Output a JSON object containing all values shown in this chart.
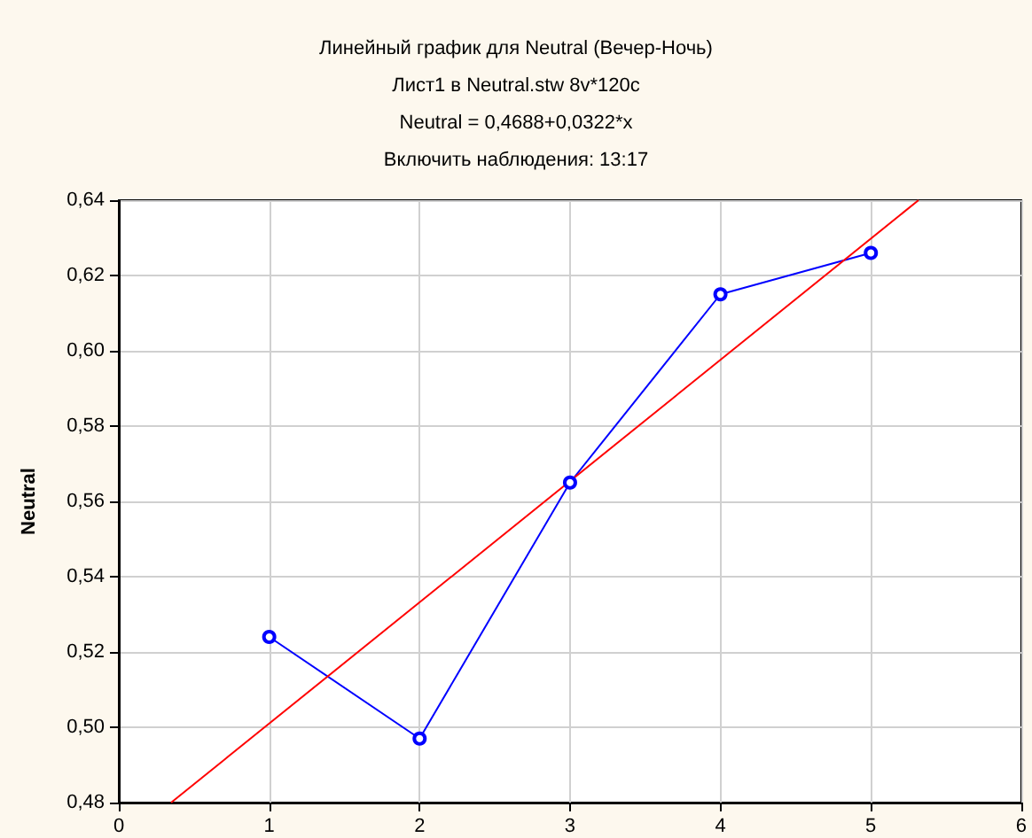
{
  "chart_data": {
    "type": "line",
    "title": "Линейный график для Neutral (Вечер-Ночь)",
    "subtitle": "Лист1 в Neutral.stw 8v*120c",
    "annotations": [
      "Neutral = 0,4688+0,0322*x",
      "Включить наблюдения: 13:17"
    ],
    "ylabel": "Neutral",
    "x": [
      1,
      2,
      3,
      4,
      5
    ],
    "series": [
      {
        "color": "#0000ff",
        "values": [
          0.524,
          0.497,
          0.565,
          0.615,
          0.626
        ],
        "marker": "circle"
      },
      {
        "color": "#ff0000",
        "x": [
          0.348,
          5.317
        ],
        "values": [
          0.48,
          0.64
        ],
        "marker": "none"
      }
    ],
    "xlim": [
      0,
      6
    ],
    "xticks": [
      0,
      1,
      2,
      3,
      4,
      5,
      6
    ],
    "ylim": [
      0.48,
      0.64
    ],
    "yticks": [
      {
        "value": 0.48,
        "label": "0,48"
      },
      {
        "value": 0.5,
        "label": "0,50"
      },
      {
        "value": 0.52,
        "label": "0,52"
      },
      {
        "value": 0.54,
        "label": "0,54"
      },
      {
        "value": 0.56,
        "label": "0,56"
      },
      {
        "value": 0.58,
        "label": "0,58"
      },
      {
        "value": 0.6,
        "label": "0,60"
      },
      {
        "value": 0.62,
        "label": "0,62"
      },
      {
        "value": 0.64,
        "label": "0,64"
      }
    ],
    "grid": true,
    "line_style": "solid"
  }
}
